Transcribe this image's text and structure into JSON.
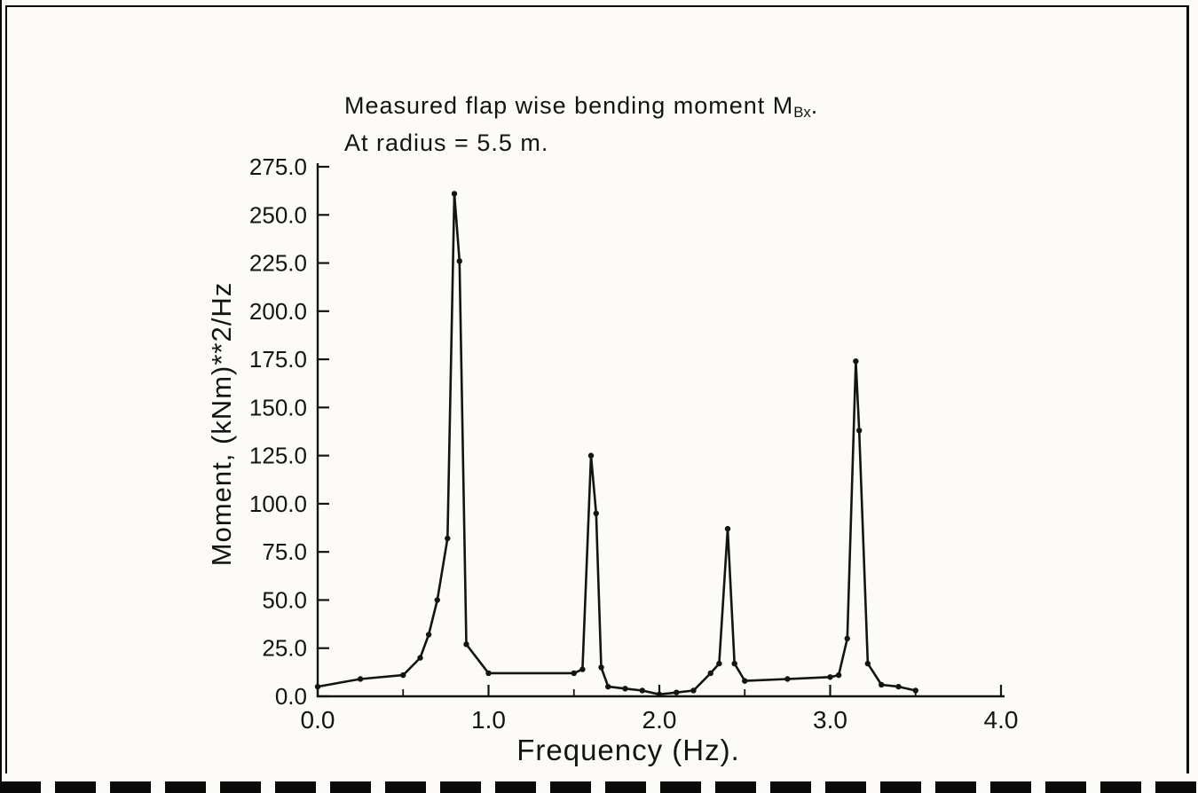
{
  "page": {
    "kind": "scanned report figure",
    "background": "#fcfbf8",
    "ink_color": "#141414"
  },
  "chart_data": {
    "type": "line",
    "title_prefix": "Measured flap wise bending moment M",
    "title_sub": "Bx",
    "title_suffix": ".",
    "subtitle": "At radius = 5.5 m.",
    "xlabel": "Frequency (Hz).",
    "ylabel": "Moment, (kNm)**2/Hz",
    "xlim": [
      0.0,
      4.0
    ],
    "ylim": [
      0.0,
      275.0
    ],
    "grid": false,
    "legend": "none",
    "line_color": "#141414",
    "marker": "dot",
    "xticks": {
      "values": [
        0.0,
        1.0,
        2.0,
        3.0,
        4.0
      ],
      "labels": [
        "0.0",
        "1.0",
        "2.0",
        "3.0",
        "4.0"
      ]
    },
    "xticks_minor": [
      0.5,
      1.5,
      2.5,
      3.5
    ],
    "yticks": {
      "values": [
        0,
        25,
        50,
        75,
        100,
        125,
        150,
        175,
        200,
        225,
        250,
        275
      ],
      "labels": [
        "0.0",
        "25.0",
        "50.0",
        "75.0",
        "100.0",
        "125.0",
        "150.0",
        "175.0",
        "200.0",
        "225.0",
        "250.0",
        "275.0"
      ]
    },
    "peaks_note": "spectral peaks near 0.8, 1.6, 2.4 and 3.15 Hz",
    "points": [
      [
        0.0,
        5
      ],
      [
        0.25,
        9
      ],
      [
        0.5,
        11
      ],
      [
        0.6,
        20
      ],
      [
        0.65,
        32
      ],
      [
        0.7,
        50
      ],
      [
        0.76,
        82
      ],
      [
        0.8,
        261
      ],
      [
        0.83,
        226
      ],
      [
        0.87,
        27
      ],
      [
        1.0,
        12
      ],
      [
        1.5,
        12
      ],
      [
        1.55,
        14
      ],
      [
        1.6,
        125
      ],
      [
        1.63,
        95
      ],
      [
        1.66,
        15
      ],
      [
        1.7,
        5
      ],
      [
        1.8,
        4
      ],
      [
        1.9,
        3
      ],
      [
        2.0,
        1
      ],
      [
        2.1,
        2
      ],
      [
        2.2,
        3
      ],
      [
        2.3,
        12
      ],
      [
        2.35,
        17
      ],
      [
        2.4,
        87
      ],
      [
        2.44,
        17
      ],
      [
        2.5,
        8
      ],
      [
        2.75,
        9
      ],
      [
        3.0,
        10
      ],
      [
        3.05,
        11
      ],
      [
        3.1,
        30
      ],
      [
        3.15,
        174
      ],
      [
        3.17,
        138
      ],
      [
        3.22,
        17
      ],
      [
        3.3,
        6
      ],
      [
        3.4,
        5
      ],
      [
        3.5,
        3
      ]
    ]
  }
}
